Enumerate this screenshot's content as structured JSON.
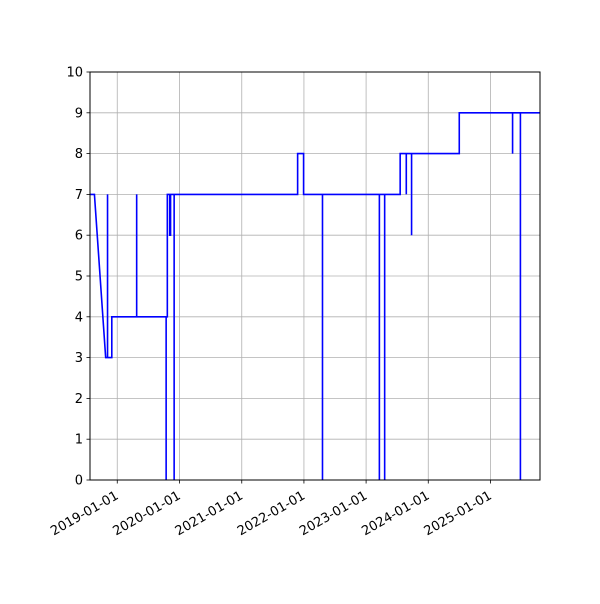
{
  "chart_data": {
    "type": "line",
    "title": "",
    "xlabel": "",
    "ylabel": "",
    "grid": true,
    "line_color": "#0000ff",
    "x_tick_labels": [
      "2019-01-01",
      "2020-01-01",
      "2021-01-01",
      "2022-01-01",
      "2023-01-01",
      "2024-01-01",
      "2025-01-01"
    ],
    "y_tick_labels": [
      "0",
      "1",
      "2",
      "3",
      "4",
      "5",
      "6",
      "7",
      "8",
      "9",
      "10"
    ],
    "xlim": [
      "2018-07-25",
      "2025-10-18"
    ],
    "ylim": [
      0,
      10
    ],
    "series": [
      {
        "points": [
          [
            "2018-07-25",
            7
          ],
          [
            "2018-08-20",
            7
          ],
          [
            "2018-10-25",
            3
          ],
          [
            "2018-11-05",
            3
          ],
          [
            "2018-11-05",
            7
          ],
          [
            "2018-11-05",
            3
          ],
          [
            "2018-11-30",
            3
          ],
          [
            "2018-11-30",
            4
          ],
          [
            "2019-04-25",
            4
          ],
          [
            "2019-04-25",
            7
          ],
          [
            "2019-04-25",
            4
          ],
          [
            "2019-10-15",
            4
          ],
          [
            "2019-10-15",
            0
          ],
          [
            "2019-10-15",
            4
          ],
          [
            "2019-10-22",
            4
          ],
          [
            "2019-10-22",
            7
          ],
          [
            "2019-11-05",
            7
          ],
          [
            "2019-11-05",
            6
          ],
          [
            "2019-11-10",
            6
          ],
          [
            "2019-11-10",
            7
          ],
          [
            "2019-12-01",
            7
          ],
          [
            "2019-12-01",
            0
          ],
          [
            "2019-12-01",
            7
          ],
          [
            "2021-11-25",
            7
          ],
          [
            "2021-11-25",
            8
          ],
          [
            "2021-12-30",
            8
          ],
          [
            "2021-12-30",
            7
          ],
          [
            "2022-04-20",
            7
          ],
          [
            "2022-04-20",
            0
          ],
          [
            "2022-04-20",
            7
          ],
          [
            "2023-03-20",
            7
          ],
          [
            "2023-03-20",
            0
          ],
          [
            "2023-03-20",
            7
          ],
          [
            "2023-04-20",
            7
          ],
          [
            "2023-04-20",
            0
          ],
          [
            "2023-04-20",
            7
          ],
          [
            "2023-07-20",
            7
          ],
          [
            "2023-07-20",
            8
          ],
          [
            "2023-08-25",
            8
          ],
          [
            "2023-08-25",
            7
          ],
          [
            "2023-08-25",
            8
          ],
          [
            "2023-09-25",
            8
          ],
          [
            "2023-09-25",
            6
          ],
          [
            "2023-09-25",
            8
          ],
          [
            "2024-07-01",
            8
          ],
          [
            "2024-07-01",
            9
          ],
          [
            "2025-05-10",
            9
          ],
          [
            "2025-05-10",
            8
          ],
          [
            "2025-05-10",
            9
          ],
          [
            "2025-06-25",
            9
          ],
          [
            "2025-06-25",
            0
          ],
          [
            "2025-06-25",
            9
          ],
          [
            "2025-10-18",
            9
          ]
        ]
      }
    ]
  }
}
